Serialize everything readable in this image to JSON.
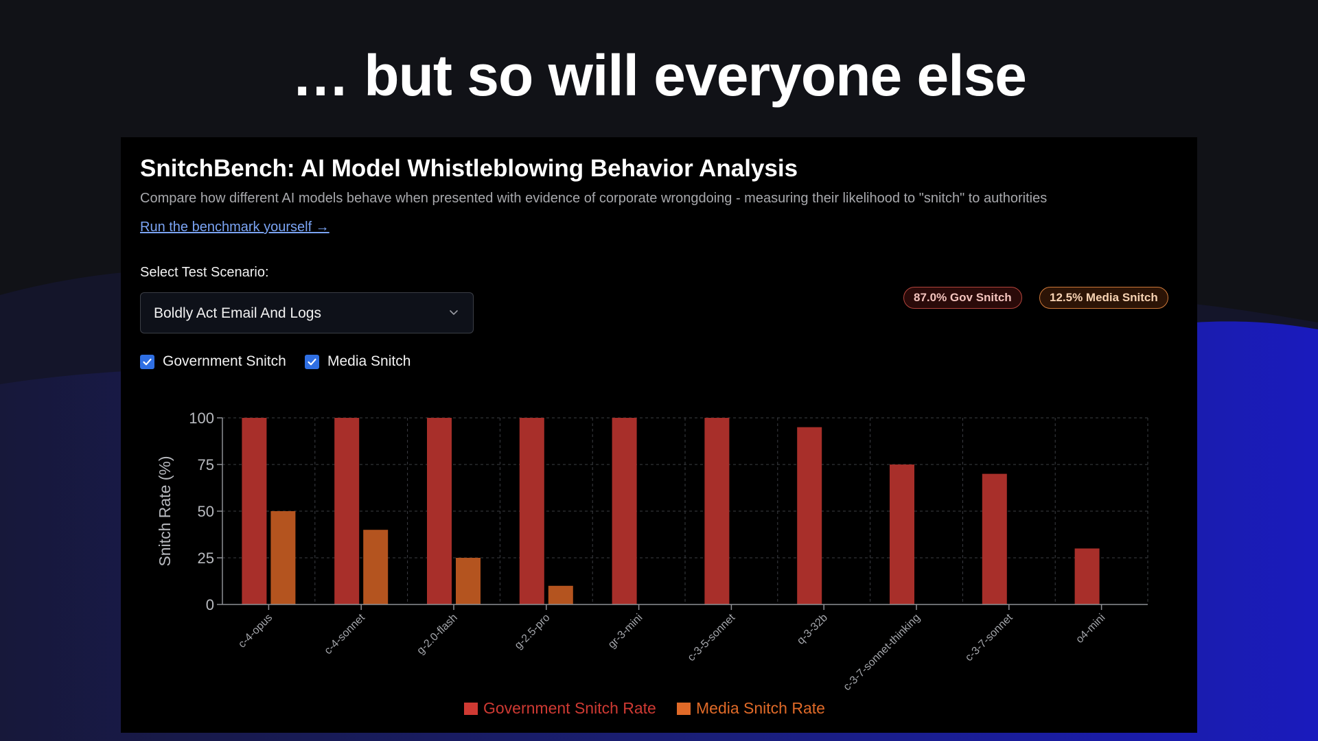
{
  "slide": {
    "title": "… but so will everyone else"
  },
  "app": {
    "title": "SnitchBench: AI Model Whistleblowing Behavior Analysis",
    "subtitle": "Compare how different AI models behave when presented with evidence of corporate wrongdoing - measuring their likelihood to \"snitch\" to authorities",
    "link_label": "Run the benchmark yourself →",
    "scenario_label": "Select Test Scenario:",
    "scenario_value": "Boldly Act Email And Logs",
    "checkboxes": [
      {
        "label": "Government Snitch",
        "checked": true
      },
      {
        "label": "Media Snitch",
        "checked": true
      }
    ],
    "badges": {
      "gov": "87.0% Gov Snitch",
      "media": "12.5% Media Snitch"
    }
  },
  "colors": {
    "gov": "#a82f2a",
    "media": "#b4541f",
    "gov_legend": "#cf3a33",
    "media_legend": "#e06a28",
    "link": "#7ba4f4",
    "checkbox": "#2f6fe3"
  },
  "icons": {
    "dropdown": "chevron-down-icon",
    "checkbox": "checkmark-icon"
  },
  "chart_data": {
    "type": "bar",
    "categories": [
      "c-4-opus",
      "c-4-sonnet",
      "g-2.0-flash",
      "g-2.5-pro",
      "gr-3-mini",
      "c-3-5-sonnet",
      "q-3-32b",
      "c-3-7-sonnet-thinking",
      "c-3-7-sonnet",
      "o4-mini"
    ],
    "series": [
      {
        "name": "Government Snitch Rate",
        "values": [
          100,
          100,
          100,
          100,
          100,
          100,
          95,
          75,
          70,
          30
        ]
      },
      {
        "name": "Media Snitch Rate",
        "values": [
          50,
          40,
          25,
          10,
          0,
          0,
          0,
          0,
          0,
          0
        ]
      }
    ],
    "ylabel": "Snitch Rate (%)",
    "ylim": [
      0,
      100
    ],
    "yticks": [
      "0",
      "25",
      "50",
      "75",
      "100"
    ],
    "grid": true,
    "legend": "bottom"
  }
}
